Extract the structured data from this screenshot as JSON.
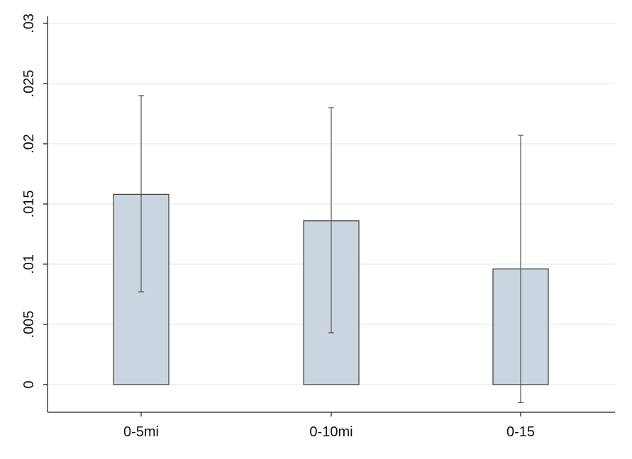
{
  "chart_data": {
    "type": "bar",
    "title": "",
    "xlabel": "",
    "ylabel": "",
    "categories": [
      "0-5mi",
      "0-10mi",
      "0-15"
    ],
    "values": [
      0.0158,
      0.0136,
      0.0096
    ],
    "ci_low": [
      0.0077,
      0.0043,
      -0.0015
    ],
    "ci_high": [
      0.024,
      0.023,
      0.0207
    ],
    "ylim": [
      -0.0023,
      0.031
    ],
    "yticks": [
      0,
      0.005,
      0.01,
      0.015,
      0.02,
      0.025,
      0.03
    ],
    "ytick_labels": [
      "0",
      ".005",
      ".01",
      ".015",
      ".02",
      ".025",
      ".03"
    ],
    "grid": true,
    "colors": {
      "bar_fill": "#cbd5df",
      "bar_stroke": "#3c3c3c",
      "errorbar": "#555555",
      "grid": "#e6eef0",
      "axis": "#222222"
    }
  }
}
